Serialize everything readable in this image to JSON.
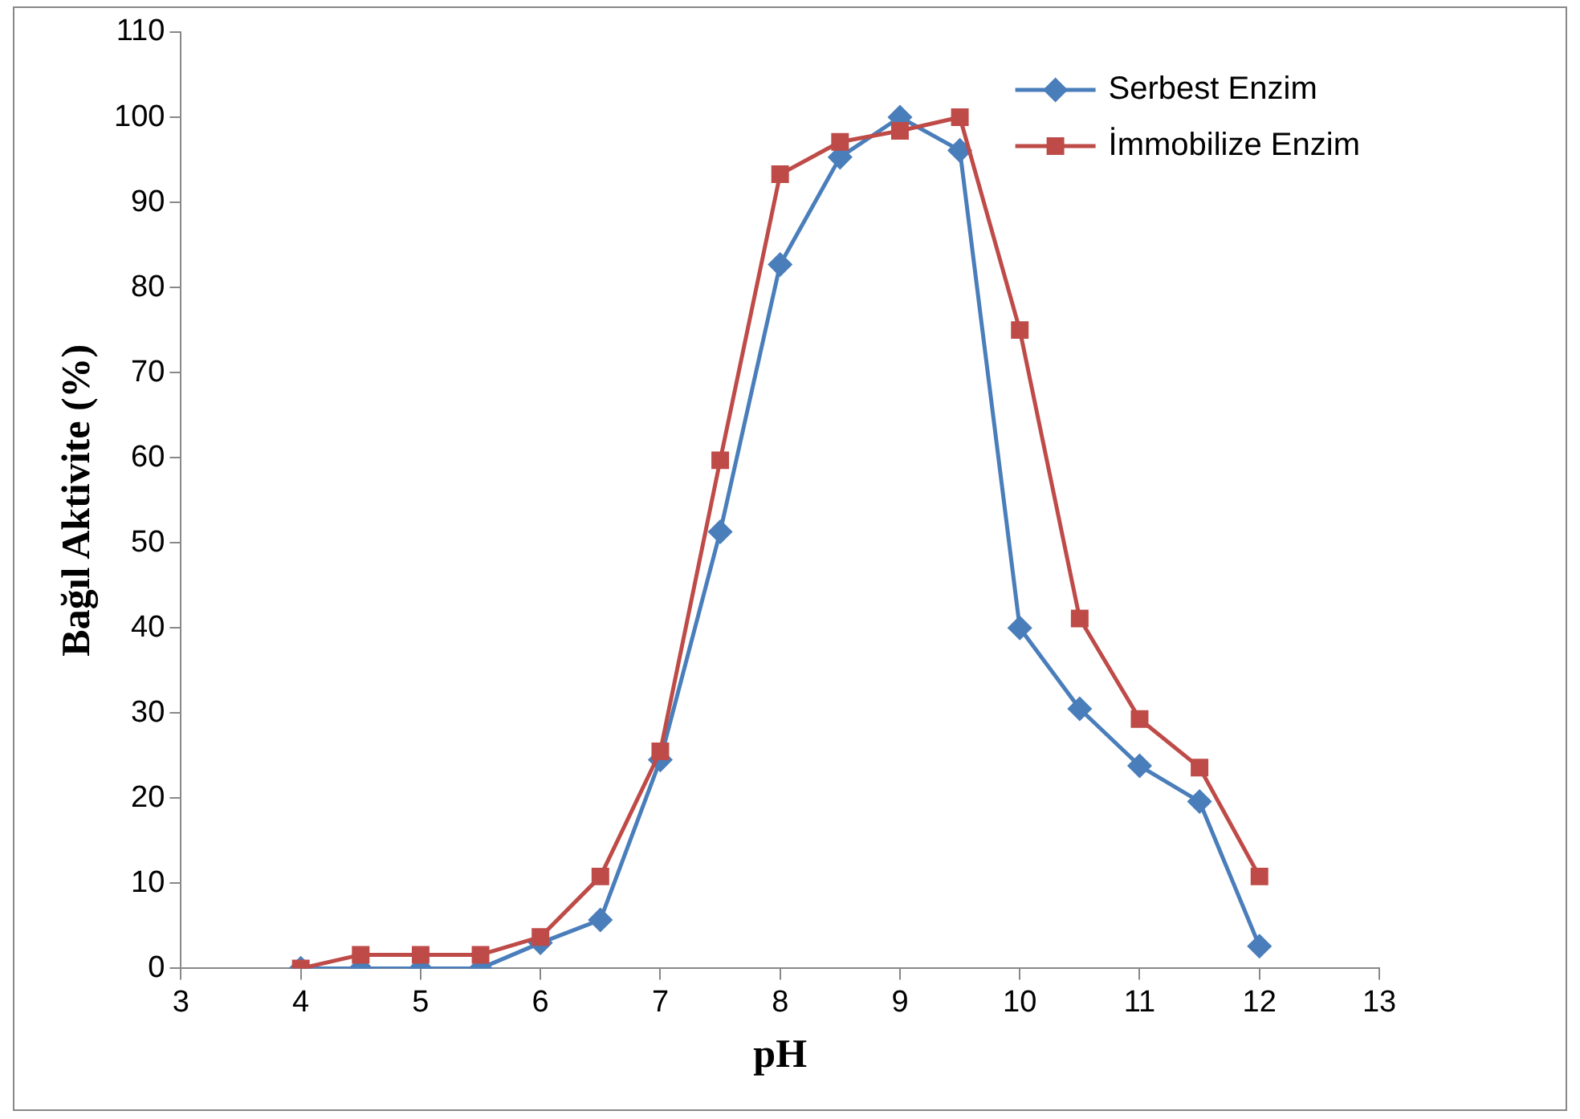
{
  "chart_data": {
    "type": "line",
    "xlabel": "pH",
    "ylabel": "Bağıl Aktivite (%)",
    "x": [
      4,
      4.5,
      5,
      5.5,
      6,
      6.5,
      7,
      7.5,
      8,
      8.5,
      9,
      9.5,
      10,
      10.5,
      11,
      11.5,
      12
    ],
    "series": [
      {
        "name": "Serbest Enzim",
        "color": "#4a7ebb",
        "marker": "diamond",
        "values": [
          0,
          0,
          0,
          0,
          3,
          5.7,
          24.5,
          51.3,
          82.7,
          95.3,
          100,
          96.1,
          40,
          30.5,
          23.8,
          19.6,
          2.6
        ]
      },
      {
        "name": "İmmobilize Enzim",
        "color": "#be4b48",
        "marker": "square",
        "values": [
          0,
          1.6,
          1.6,
          1.6,
          3.7,
          10.8,
          25.5,
          59.7,
          93.3,
          97.1,
          98.4,
          100,
          75,
          41.1,
          29.3,
          23.6,
          10.8
        ]
      }
    ],
    "xlim": [
      3,
      13
    ],
    "xticks": [
      3,
      4,
      5,
      6,
      7,
      8,
      9,
      10,
      11,
      12,
      13
    ],
    "ylim": [
      0,
      110
    ],
    "yticks": [
      0,
      10,
      20,
      30,
      40,
      50,
      60,
      70,
      80,
      90,
      100,
      110
    ],
    "grid": false,
    "legend": "top right",
    "line_style": "solid"
  }
}
